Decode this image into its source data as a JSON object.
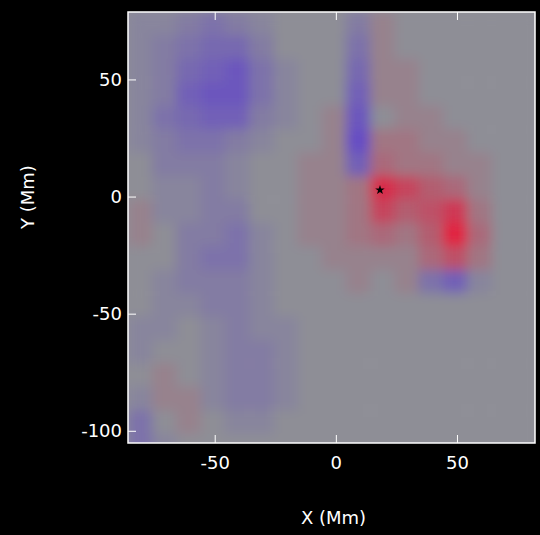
{
  "chart_data": {
    "type": "heatmap",
    "x_label": "X (Mm)",
    "y_label": "Y (Mm)",
    "xlim": [
      -86,
      82
    ],
    "ylim": [
      -105,
      79
    ],
    "xticks": [
      -50,
      0,
      50
    ],
    "yticks": [
      50,
      0,
      -50,
      -100
    ],
    "zlim": [
      -1,
      1
    ],
    "x": [
      -81,
      -71,
      -61,
      -51,
      -41,
      -31,
      -21,
      -11,
      -1,
      9,
      19,
      29,
      39,
      49,
      59,
      69,
      79
    ],
    "y": [
      74,
      64,
      54,
      44,
      34,
      24,
      14,
      4,
      -6,
      -16,
      -26,
      -36,
      -46,
      -56,
      -66,
      -76,
      -86,
      -96,
      -106
    ],
    "values": [
      [
        -0.1,
        -0.1,
        -0.2,
        -0.3,
        -0.2,
        -0.1,
        0,
        0,
        0,
        -0.2,
        0.1,
        0,
        0,
        0,
        0,
        0,
        0
      ],
      [
        -0.1,
        -0.2,
        -0.3,
        -0.4,
        -0.4,
        -0.2,
        0,
        0,
        0,
        -0.3,
        0.1,
        0,
        0,
        0,
        0,
        0,
        0
      ],
      [
        -0.1,
        -0.2,
        -0.4,
        -0.5,
        -0.6,
        -0.3,
        -0.1,
        0,
        0,
        -0.4,
        0.1,
        0.1,
        0,
        0,
        0,
        0,
        0
      ],
      [
        -0.1,
        -0.2,
        -0.5,
        -0.6,
        -0.6,
        -0.3,
        -0.1,
        0,
        0,
        -0.5,
        0.1,
        0.1,
        0,
        0,
        0,
        0,
        0
      ],
      [
        -0.1,
        -0.3,
        -0.4,
        -0.5,
        -0.5,
        -0.2,
        -0.1,
        0,
        0.1,
        -0.6,
        0,
        0.1,
        0.1,
        0,
        0,
        0,
        0
      ],
      [
        -0.1,
        -0.2,
        -0.3,
        -0.3,
        -0.2,
        -0.1,
        0,
        0,
        0.1,
        -0.7,
        0.2,
        0.2,
        0.1,
        0.1,
        0,
        0,
        0
      ],
      [
        0,
        -0.2,
        -0.2,
        -0.2,
        -0.1,
        0,
        0,
        0.1,
        0.1,
        -0.5,
        0.3,
        0.2,
        0.2,
        0.1,
        0.1,
        0,
        0
      ],
      [
        0,
        -0.1,
        -0.1,
        -0.2,
        -0.1,
        0,
        0,
        0.1,
        0.1,
        0.2,
        0.8,
        0.6,
        0.4,
        0.3,
        0.1,
        0,
        0
      ],
      [
        0.1,
        -0.1,
        -0.1,
        -0.2,
        -0.2,
        0,
        0,
        0.1,
        0.1,
        0.2,
        0.6,
        0.4,
        0.5,
        0.7,
        0.2,
        0,
        0
      ],
      [
        0.1,
        0,
        -0.2,
        -0.2,
        -0.3,
        -0.1,
        0,
        0.1,
        0.1,
        0.2,
        0.3,
        0.2,
        0.4,
        0.9,
        0.3,
        0,
        0
      ],
      [
        0,
        0,
        -0.2,
        -0.3,
        -0.3,
        -0.1,
        0,
        0,
        0.1,
        0.1,
        0.1,
        0.1,
        0.3,
        0.5,
        0.2,
        0,
        0
      ],
      [
        0,
        -0.1,
        -0.2,
        -0.2,
        -0.2,
        -0.1,
        0,
        0,
        0,
        0.1,
        0,
        0.1,
        -0.3,
        -0.5,
        -0.1,
        0,
        0
      ],
      [
        0,
        -0.1,
        -0.1,
        -0.2,
        -0.2,
        -0.1,
        0,
        0,
        0,
        0,
        0,
        0,
        0,
        0,
        0,
        0,
        0
      ],
      [
        -0.1,
        -0.1,
        0,
        -0.1,
        -0.2,
        -0.1,
        -0.1,
        0,
        0,
        0,
        0,
        0,
        0,
        0,
        0,
        0,
        0
      ],
      [
        -0.1,
        0,
        0,
        -0.1,
        -0.2,
        -0.2,
        -0.1,
        0,
        0,
        0,
        0,
        0,
        0,
        0,
        0,
        0,
        0
      ],
      [
        0,
        0.1,
        0,
        -0.1,
        -0.2,
        -0.2,
        -0.1,
        0,
        0,
        0,
        0,
        0,
        0,
        0,
        0,
        0,
        0
      ],
      [
        -0.1,
        0.1,
        0.1,
        -0.1,
        -0.2,
        -0.2,
        -0.1,
        0,
        0,
        0,
        0,
        0,
        0,
        0,
        0,
        0,
        0
      ],
      [
        -0.3,
        0,
        0.1,
        0,
        -0.1,
        -0.1,
        0,
        0,
        0,
        0,
        0,
        0,
        0,
        0,
        0,
        0,
        0
      ],
      [
        -0.3,
        -0.1,
        0,
        0,
        0,
        0,
        0,
        0,
        0,
        0,
        0,
        0,
        0,
        0,
        0,
        0,
        0
      ]
    ],
    "annotations": [
      {
        "x": 18,
        "y": 3,
        "marker": "star"
      }
    ]
  }
}
